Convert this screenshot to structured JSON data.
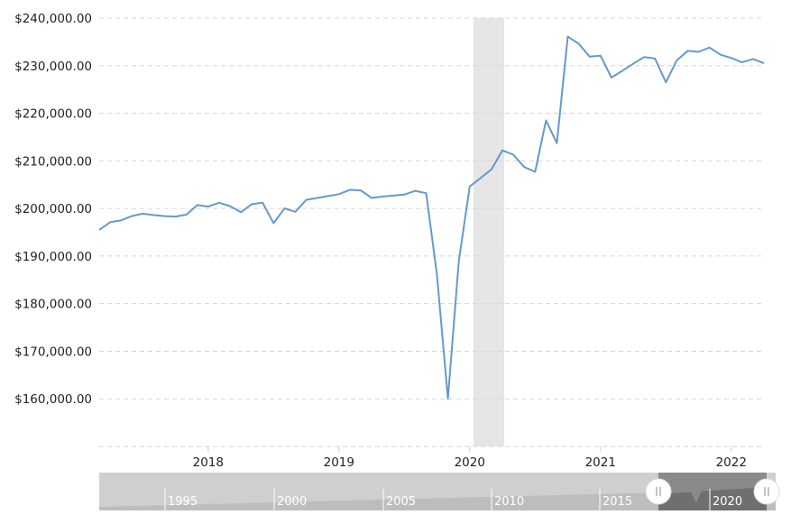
{
  "chart_data": {
    "type": "line",
    "title": "",
    "xlabel": "",
    "ylabel": "",
    "x_tick_labels": [
      "2018",
      "2019",
      "2020",
      "2021",
      "2022"
    ],
    "y_tick_labels": [
      "$160,000.00",
      "$170,000.00",
      "$180,000.00",
      "$190,000.00",
      "$200,000.00",
      "$210,000.00",
      "$220,000.00",
      "$230,000.00",
      "$240,000.00"
    ],
    "ylim": [
      150000,
      240000
    ],
    "xlim": [
      "2017-03",
      "2022-04"
    ],
    "grid": true,
    "legend": "none",
    "recession_band": {
      "start": "2020-02",
      "end": "2020-04"
    },
    "series": [
      {
        "color": "#6699cc",
        "x": [
          "2017-03",
          "2017-04",
          "2017-05",
          "2017-06",
          "2017-07",
          "2017-08",
          "2017-09",
          "2017-10",
          "2017-11",
          "2017-12",
          "2018-01",
          "2018-02",
          "2018-03",
          "2018-04",
          "2018-05",
          "2018-06",
          "2018-07",
          "2018-08",
          "2018-09",
          "2018-10",
          "2018-11",
          "2018-12",
          "2019-01",
          "2019-02",
          "2019-03",
          "2019-04",
          "2019-05",
          "2019-06",
          "2019-07",
          "2019-08",
          "2019-09",
          "2019-10",
          "2019-11",
          "2019-12",
          "2020-01",
          "2020-02",
          "2020-03",
          "2020-04",
          "2020-05",
          "2020-06",
          "2020-07",
          "2020-08",
          "2020-09",
          "2020-10",
          "2020-11",
          "2020-12",
          "2021-01",
          "2021-02",
          "2021-03",
          "2021-04",
          "2021-05",
          "2021-06",
          "2021-07",
          "2021-08",
          "2021-09",
          "2021-10",
          "2021-11",
          "2021-12",
          "2022-01",
          "2022-02",
          "2022-03",
          "2022-04"
        ],
        "values": [
          195500,
          197100,
          197500,
          198400,
          198900,
          198600,
          198400,
          198300,
          198700,
          200700,
          200400,
          201200,
          200500,
          199200,
          200900,
          201200,
          196900,
          200000,
          199300,
          201800,
          202200,
          202600,
          203000,
          203900,
          203800,
          202200,
          202500,
          202700,
          202900,
          203700,
          203200,
          186000,
          160000,
          189000,
          204600,
          206400,
          208200,
          212200,
          211300,
          208700,
          207700,
          218500,
          213700,
          236100,
          234600,
          231900,
          232100,
          227500,
          228900,
          230400,
          231800,
          231500,
          226500,
          231100,
          233100,
          232900,
          233800,
          232300,
          231600,
          230700,
          231400,
          230500
        ]
      }
    ]
  },
  "navigator": {
    "labels": [
      "1995",
      "2000",
      "2005",
      "2010",
      "2015",
      "2020"
    ],
    "left_handle_icon": "grip-icon",
    "right_handle_icon": "grip-icon"
  }
}
